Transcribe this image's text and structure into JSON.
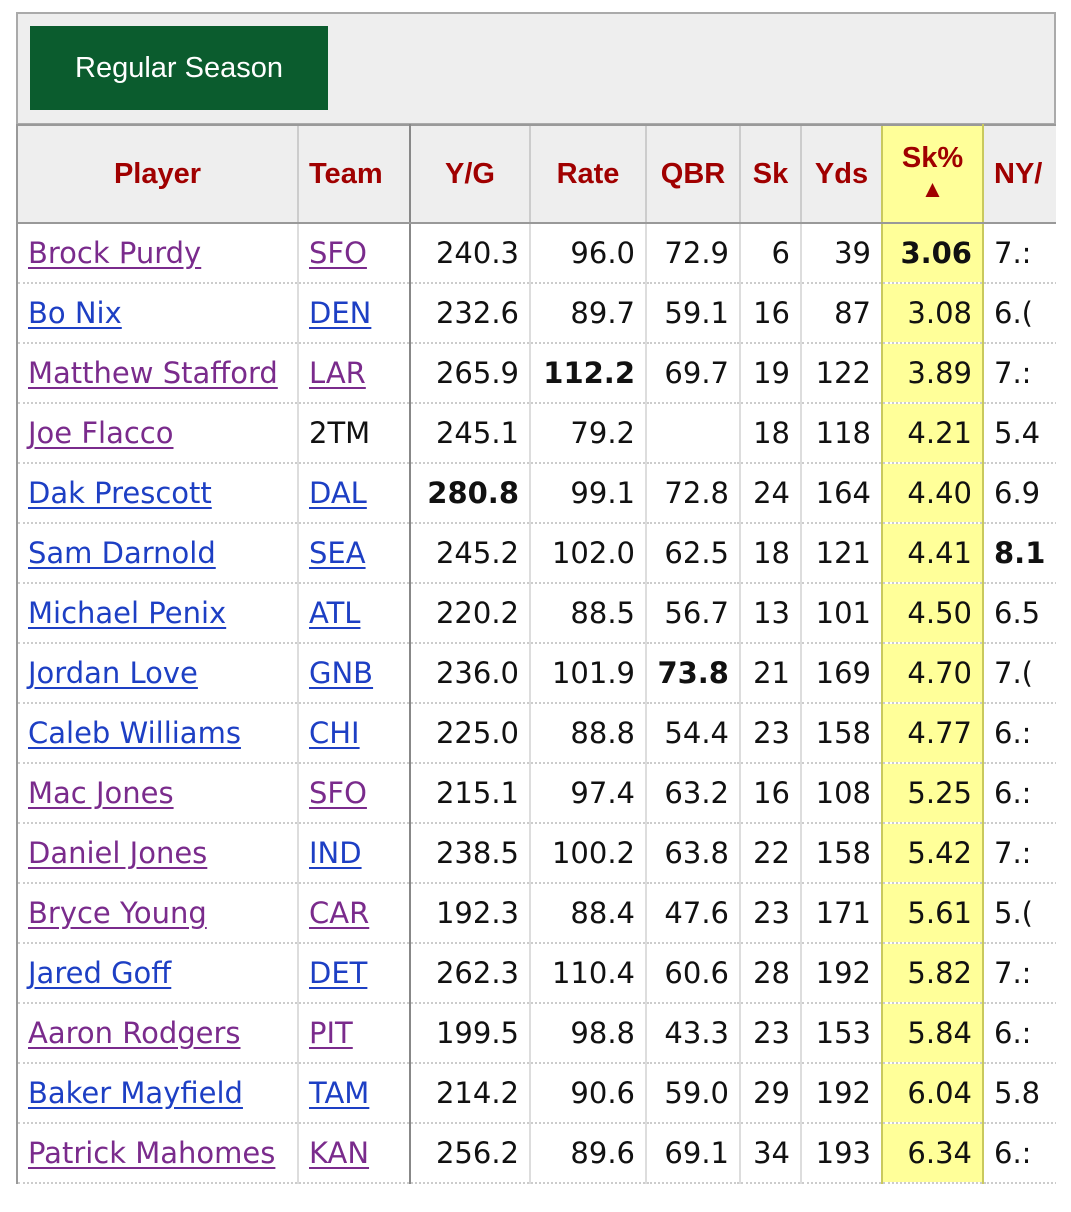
{
  "tab": {
    "label": "Regular Season"
  },
  "headers": {
    "player": "Player",
    "team": "Team",
    "yg": "Y/G",
    "rate": "Rate",
    "qbr": "QBR",
    "sk": "Sk",
    "yds": "Yds",
    "skpct": "Sk%",
    "skpct_arrow": "▲",
    "nya": "NY/"
  },
  "rows": [
    {
      "player": "Brock Purdy",
      "team": "SFO",
      "yg": "240.3",
      "rate": "96.0",
      "qbr": "72.9",
      "sk": "6",
      "yds": "39",
      "skpct": "3.06",
      "nya": "7.:"
    },
    {
      "player": "Bo Nix",
      "team": "DEN",
      "yg": "232.6",
      "rate": "89.7",
      "qbr": "59.1",
      "sk": "16",
      "yds": "87",
      "skpct": "3.08",
      "nya": "6.("
    },
    {
      "player": "Matthew Stafford",
      "team": "LAR",
      "yg": "265.9",
      "rate": "112.2",
      "qbr": "69.7",
      "sk": "19",
      "yds": "122",
      "skpct": "3.89",
      "nya": "7.:"
    },
    {
      "player": "Joe Flacco",
      "team": "2TM",
      "yg": "245.1",
      "rate": "79.2",
      "qbr": "",
      "sk": "18",
      "yds": "118",
      "skpct": "4.21",
      "nya": "5.4"
    },
    {
      "player": "Dak Prescott",
      "team": "DAL",
      "yg": "280.8",
      "rate": "99.1",
      "qbr": "72.8",
      "sk": "24",
      "yds": "164",
      "skpct": "4.40",
      "nya": "6.9"
    },
    {
      "player": "Sam Darnold",
      "team": "SEA",
      "yg": "245.2",
      "rate": "102.0",
      "qbr": "62.5",
      "sk": "18",
      "yds": "121",
      "skpct": "4.41",
      "nya": "8.1"
    },
    {
      "player": "Michael Penix",
      "team": "ATL",
      "yg": "220.2",
      "rate": "88.5",
      "qbr": "56.7",
      "sk": "13",
      "yds": "101",
      "skpct": "4.50",
      "nya": "6.5"
    },
    {
      "player": "Jordan Love",
      "team": "GNB",
      "yg": "236.0",
      "rate": "101.9",
      "qbr": "73.8",
      "sk": "21",
      "yds": "169",
      "skpct": "4.70",
      "nya": "7.("
    },
    {
      "player": "Caleb Williams",
      "team": "CHI",
      "yg": "225.0",
      "rate": "88.8",
      "qbr": "54.4",
      "sk": "23",
      "yds": "158",
      "skpct": "4.77",
      "nya": "6.:"
    },
    {
      "player": "Mac Jones",
      "team": "SFO",
      "yg": "215.1",
      "rate": "97.4",
      "qbr": "63.2",
      "sk": "16",
      "yds": "108",
      "skpct": "5.25",
      "nya": "6.:"
    },
    {
      "player": "Daniel Jones",
      "team": "IND",
      "yg": "238.5",
      "rate": "100.2",
      "qbr": "63.8",
      "sk": "22",
      "yds": "158",
      "skpct": "5.42",
      "nya": "7.:"
    },
    {
      "player": "Bryce Young",
      "team": "CAR",
      "yg": "192.3",
      "rate": "88.4",
      "qbr": "47.6",
      "sk": "23",
      "yds": "171",
      "skpct": "5.61",
      "nya": "5.("
    },
    {
      "player": "Jared Goff",
      "team": "DET",
      "yg": "262.3",
      "rate": "110.4",
      "qbr": "60.6",
      "sk": "28",
      "yds": "192",
      "skpct": "5.82",
      "nya": "7.:"
    },
    {
      "player": "Aaron Rodgers",
      "team": "PIT",
      "yg": "199.5",
      "rate": "98.8",
      "qbr": "43.3",
      "sk": "23",
      "yds": "153",
      "skpct": "5.84",
      "nya": "6.:"
    },
    {
      "player": "Baker Mayfield",
      "team": "TAM",
      "yg": "214.2",
      "rate": "90.6",
      "qbr": "59.0",
      "sk": "29",
      "yds": "192",
      "skpct": "6.04",
      "nya": "5.8"
    },
    {
      "player": "Patrick Mahomes",
      "team": "KAN",
      "yg": "256.2",
      "rate": "89.6",
      "qbr": "69.1",
      "sk": "34",
      "yds": "193",
      "skpct": "6.34",
      "nya": "6.:"
    }
  ]
}
